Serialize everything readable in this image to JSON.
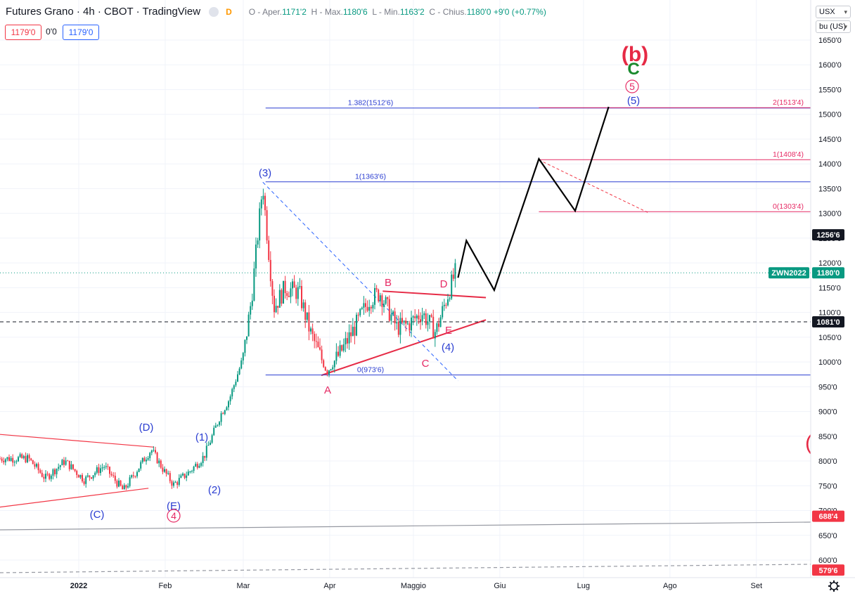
{
  "header": {
    "title": "Futures Grano · 4h · CBOT · TradingView",
    "interval_badge": "D",
    "ohlc": {
      "open_label": "O - Aper.",
      "open": "1171'2",
      "high_label": "H - Max.",
      "high": "1180'6",
      "low_label": "L - Min.",
      "low": "1163'2",
      "close_label": "C - Chius.",
      "close": "1180'0",
      "change": "+9'0 (+0.77%)"
    },
    "sell_price": "1179'0",
    "spread": "0'0",
    "buy_price": "1179'0"
  },
  "currency_select": "USX",
  "unit_select": "bu (US)",
  "colors": {
    "up": "#089981",
    "down": "#f23645",
    "wave_blue": "#2a3dd1",
    "wave_red": "#e62a64",
    "path": "#000000",
    "settings_icon": "gear-icon"
  },
  "chart_data": {
    "type": "line",
    "y_ticks": [
      "1650'0",
      "1600'0",
      "1550'0",
      "1500'0",
      "1450'0",
      "1400'0",
      "1350'0",
      "1300'0",
      "1250'0",
      "1200'0",
      "1150'0",
      "1100'0",
      "1050'0",
      "1000'0",
      "950'0",
      "900'0",
      "850'0",
      "800'0",
      "750'0",
      "700'0",
      "650'0",
      "600'0"
    ],
    "x_ticks": [
      "2022",
      "Feb",
      "Mar",
      "Apr",
      "Maggio",
      "Giu",
      "Lug",
      "Ago",
      "Set"
    ],
    "price_series": {
      "x": [
        "2021-12-14",
        "2021-12-20",
        "2021-12-27",
        "2022-01-03",
        "2022-01-10",
        "2022-01-17",
        "2022-01-24",
        "2022-01-27",
        "2022-02-01",
        "2022-02-04",
        "2022-02-10",
        "2022-02-15",
        "2022-02-21",
        "2022-02-24",
        "2022-03-01",
        "2022-03-04",
        "2022-03-08",
        "2022-03-09",
        "2022-03-12",
        "2022-03-16",
        "2022-03-21",
        "2022-03-25",
        "2022-03-31",
        "2022-04-05",
        "2022-04-11",
        "2022-04-15",
        "2022-04-19",
        "2022-04-25",
        "2022-04-29",
        "2022-05-04",
        "2022-05-09",
        "2022-05-13",
        "2022-05-16"
      ],
      "y": [
        805,
        765,
        800,
        762,
        790,
        740,
        800,
        823,
        776,
        752,
        780,
        810,
        895,
        925,
        1010,
        1130,
        1360,
        1290,
        1110,
        1150,
        1140,
        1060,
        980,
        1020,
        1080,
        1125,
        1140,
        1070,
        1075,
        1100,
        1060,
        1130,
        1180
      ]
    },
    "projection_path": {
      "x": [
        "2022-05-17",
        "2022-05-20",
        "2022-05-30",
        "2022-06-15",
        "2022-06-28",
        "2022-07-10"
      ],
      "y": [
        1170,
        1245,
        1145,
        1410,
        1305,
        1515
      ]
    },
    "horizontal_levels": [
      {
        "label": "1.382(1512'6)",
        "value": 1512.75,
        "color": "#2a3dd1"
      },
      {
        "label": "1(1363'6)",
        "value": 1363.75,
        "color": "#2a3dd1"
      },
      {
        "label": "0(973'6)",
        "value": 973.75,
        "color": "#2a3dd1"
      },
      {
        "label": "2(1513'4)",
        "value": 1513.5,
        "color": "#e62a64"
      },
      {
        "label": "1(1408'4)",
        "value": 1408.5,
        "color": "#e62a64"
      },
      {
        "label": "0(1303'4)",
        "value": 1303.5,
        "color": "#e62a64"
      }
    ],
    "wave_labels": [
      {
        "text": "(b)",
        "color": "#e62a45"
      },
      {
        "text": "C",
        "color": "#1a8a2e"
      },
      {
        "text": "5",
        "color": "#e62a64"
      },
      {
        "text": "(5)",
        "color": "#2a3dd1"
      },
      {
        "text": "(3)",
        "color": "#2a3dd1"
      },
      {
        "text": "B",
        "color": "#e62a64"
      },
      {
        "text": "D",
        "color": "#e62a64"
      },
      {
        "text": "E",
        "color": "#e62a64"
      },
      {
        "text": "(4)",
        "color": "#2a3dd1"
      },
      {
        "text": "C",
        "color": "#e62a64"
      },
      {
        "text": "A",
        "color": "#e62a64"
      },
      {
        "text": "(D)",
        "color": "#2a3dd1"
      },
      {
        "text": "(1)",
        "color": "#2a3dd1"
      },
      {
        "text": "(2)",
        "color": "#2a3dd1"
      },
      {
        "text": "(C)",
        "color": "#2a3dd1"
      },
      {
        "text": "(E)",
        "color": "#2a3dd1"
      },
      {
        "text": "4",
        "color": "#e62a64"
      },
      {
        "text": "(",
        "color": "#e62a45"
      }
    ],
    "price_tags": [
      {
        "text": "1256'6",
        "value": 1256.75,
        "bg": "#131722"
      },
      {
        "text": "1180'0",
        "value": 1180,
        "bg": "#089981",
        "name": "ZWN2022"
      },
      {
        "text": "1081'0",
        "value": 1081,
        "bg": "#131722"
      },
      {
        "text": "688'4",
        "value": 688.5,
        "bg": "#f23645"
      },
      {
        "text": "579'6",
        "value": 579.75,
        "bg": "#f23645"
      }
    ]
  }
}
